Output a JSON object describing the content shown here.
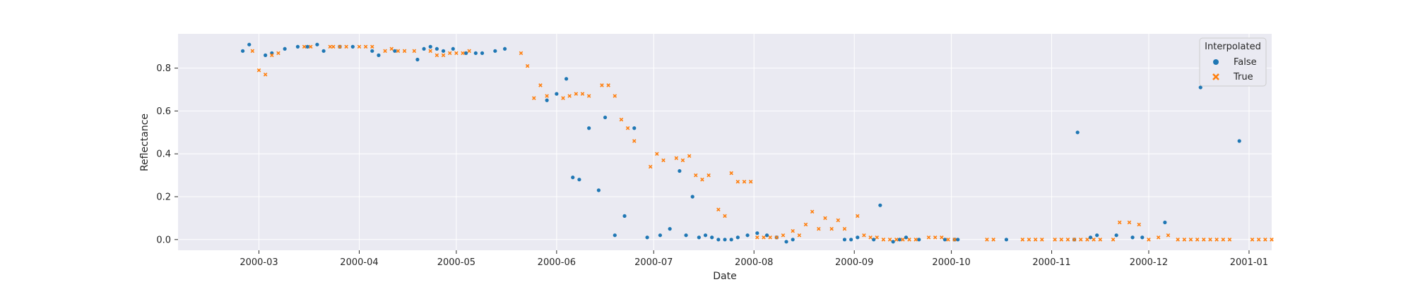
{
  "chart_data": {
    "type": "scatter",
    "title": "",
    "xlabel": "Date",
    "ylabel": "Reflectance",
    "x_is_date": true,
    "xlim": [
      "2000-02-05",
      "2001-01-08"
    ],
    "ylim": [
      -0.05,
      0.96
    ],
    "xticks": [
      "2000-03-01",
      "2000-04-01",
      "2000-05-01",
      "2000-06-01",
      "2000-07-01",
      "2000-08-01",
      "2000-09-01",
      "2000-10-01",
      "2000-11-01",
      "2000-12-01",
      "2001-01-01"
    ],
    "xtick_labels": [
      "2000-03",
      "2000-04",
      "2000-05",
      "2000-06",
      "2000-07",
      "2000-08",
      "2000-09",
      "2000-10",
      "2000-11",
      "2000-12",
      "2001-01"
    ],
    "yticks": [
      0.0,
      0.2,
      0.4,
      0.6,
      0.8
    ],
    "ytick_labels": [
      "0.0",
      "0.2",
      "0.4",
      "0.6",
      "0.8"
    ],
    "grid": true,
    "legend": {
      "title": "Interpolated",
      "position": "top-right",
      "entries": [
        "False",
        "True"
      ]
    },
    "colors": {
      "False": "#1f77b4",
      "True": "#ff7f0e",
      "plot_bg": "#eaeaf2",
      "grid": "#ffffff"
    },
    "series": [
      {
        "name": "False",
        "marker": "circle",
        "points": [
          [
            "2000-02-25",
            0.88
          ],
          [
            "2000-02-27",
            0.91
          ],
          [
            "2000-03-03",
            0.86
          ],
          [
            "2000-03-05",
            0.87
          ],
          [
            "2000-03-09",
            0.89
          ],
          [
            "2000-03-13",
            0.9
          ],
          [
            "2000-03-16",
            0.9
          ],
          [
            "2000-03-19",
            0.91
          ],
          [
            "2000-03-21",
            0.88
          ],
          [
            "2000-03-26",
            0.9
          ],
          [
            "2000-03-30",
            0.9
          ],
          [
            "2000-04-05",
            0.88
          ],
          [
            "2000-04-07",
            0.86
          ],
          [
            "2000-04-12",
            0.88
          ],
          [
            "2000-04-19",
            0.84
          ],
          [
            "2000-04-21",
            0.89
          ],
          [
            "2000-04-23",
            0.9
          ],
          [
            "2000-04-25",
            0.89
          ],
          [
            "2000-04-27",
            0.88
          ],
          [
            "2000-04-30",
            0.89
          ],
          [
            "2000-05-04",
            0.87
          ],
          [
            "2000-05-07",
            0.87
          ],
          [
            "2000-05-09",
            0.87
          ],
          [
            "2000-05-13",
            0.88
          ],
          [
            "2000-05-16",
            0.89
          ],
          [
            "2000-05-29",
            0.65
          ],
          [
            "2000-06-01",
            0.68
          ],
          [
            "2000-06-04",
            0.75
          ],
          [
            "2000-06-06",
            0.29
          ],
          [
            "2000-06-08",
            0.28
          ],
          [
            "2000-06-11",
            0.52
          ],
          [
            "2000-06-14",
            0.23
          ],
          [
            "2000-06-16",
            0.57
          ],
          [
            "2000-06-19",
            0.02
          ],
          [
            "2000-06-22",
            0.11
          ],
          [
            "2000-06-25",
            0.52
          ],
          [
            "2000-06-29",
            0.01
          ],
          [
            "2000-07-03",
            0.02
          ],
          [
            "2000-07-06",
            0.05
          ],
          [
            "2000-07-09",
            0.32
          ],
          [
            "2000-07-11",
            0.02
          ],
          [
            "2000-07-13",
            0.2
          ],
          [
            "2000-07-15",
            0.01
          ],
          [
            "2000-07-17",
            0.02
          ],
          [
            "2000-07-19",
            0.01
          ],
          [
            "2000-07-21",
            0.0
          ],
          [
            "2000-07-23",
            0.0
          ],
          [
            "2000-07-25",
            0.0
          ],
          [
            "2000-07-27",
            0.01
          ],
          [
            "2000-07-30",
            0.02
          ],
          [
            "2000-08-02",
            0.03
          ],
          [
            "2000-08-05",
            0.02
          ],
          [
            "2000-08-08",
            0.01
          ],
          [
            "2000-08-11",
            -0.01
          ],
          [
            "2000-08-13",
            0.0
          ],
          [
            "2000-08-29",
            0.0
          ],
          [
            "2000-08-31",
            0.0
          ],
          [
            "2000-09-02",
            0.01
          ],
          [
            "2000-09-07",
            0.0
          ],
          [
            "2000-09-09",
            0.16
          ],
          [
            "2000-09-13",
            -0.01
          ],
          [
            "2000-09-15",
            0.0
          ],
          [
            "2000-09-17",
            0.01
          ],
          [
            "2000-09-21",
            0.0
          ],
          [
            "2000-09-29",
            0.0
          ],
          [
            "2000-10-02",
            0.0
          ],
          [
            "2000-10-03",
            0.0
          ],
          [
            "2000-10-18",
            0.0
          ],
          [
            "2000-11-08",
            0.0
          ],
          [
            "2000-11-09",
            0.5
          ],
          [
            "2000-11-13",
            0.01
          ],
          [
            "2000-11-15",
            0.02
          ],
          [
            "2000-11-21",
            0.02
          ],
          [
            "2000-11-26",
            0.01
          ],
          [
            "2000-11-29",
            0.01
          ],
          [
            "2000-12-06",
            0.08
          ],
          [
            "2000-12-17",
            0.71
          ],
          [
            "2000-12-29",
            0.46
          ]
        ]
      },
      {
        "name": "True",
        "marker": "x",
        "points": [
          [
            "2000-02-28",
            0.88
          ],
          [
            "2000-03-01",
            0.79
          ],
          [
            "2000-03-03",
            0.77
          ],
          [
            "2000-03-05",
            0.86
          ],
          [
            "2000-03-07",
            0.87
          ],
          [
            "2000-03-15",
            0.9
          ],
          [
            "2000-03-17",
            0.9
          ],
          [
            "2000-03-23",
            0.9
          ],
          [
            "2000-03-24",
            0.9
          ],
          [
            "2000-03-26",
            0.9
          ],
          [
            "2000-03-28",
            0.9
          ],
          [
            "2000-04-01",
            0.9
          ],
          [
            "2000-04-03",
            0.9
          ],
          [
            "2000-04-05",
            0.9
          ],
          [
            "2000-04-09",
            0.88
          ],
          [
            "2000-04-11",
            0.89
          ],
          [
            "2000-04-13",
            0.88
          ],
          [
            "2000-04-15",
            0.88
          ],
          [
            "2000-04-18",
            0.88
          ],
          [
            "2000-04-23",
            0.88
          ],
          [
            "2000-04-25",
            0.86
          ],
          [
            "2000-04-27",
            0.86
          ],
          [
            "2000-04-29",
            0.87
          ],
          [
            "2000-05-01",
            0.87
          ],
          [
            "2000-05-03",
            0.87
          ],
          [
            "2000-05-05",
            0.88
          ],
          [
            "2000-05-21",
            0.87
          ],
          [
            "2000-05-23",
            0.81
          ],
          [
            "2000-05-25",
            0.66
          ],
          [
            "2000-05-27",
            0.72
          ],
          [
            "2000-05-29",
            0.67
          ],
          [
            "2000-06-03",
            0.66
          ],
          [
            "2000-06-05",
            0.67
          ],
          [
            "2000-06-07",
            0.68
          ],
          [
            "2000-06-09",
            0.68
          ],
          [
            "2000-06-11",
            0.67
          ],
          [
            "2000-06-15",
            0.72
          ],
          [
            "2000-06-17",
            0.72
          ],
          [
            "2000-06-19",
            0.67
          ],
          [
            "2000-06-21",
            0.56
          ],
          [
            "2000-06-23",
            0.52
          ],
          [
            "2000-06-25",
            0.46
          ],
          [
            "2000-06-30",
            0.34
          ],
          [
            "2000-07-02",
            0.4
          ],
          [
            "2000-07-04",
            0.37
          ],
          [
            "2000-07-08",
            0.38
          ],
          [
            "2000-07-10",
            0.37
          ],
          [
            "2000-07-12",
            0.39
          ],
          [
            "2000-07-14",
            0.3
          ],
          [
            "2000-07-16",
            0.28
          ],
          [
            "2000-07-18",
            0.3
          ],
          [
            "2000-07-21",
            0.14
          ],
          [
            "2000-07-23",
            0.11
          ],
          [
            "2000-07-25",
            0.31
          ],
          [
            "2000-07-27",
            0.27
          ],
          [
            "2000-07-29",
            0.27
          ],
          [
            "2000-07-31",
            0.27
          ],
          [
            "2000-08-02",
            0.01
          ],
          [
            "2000-08-04",
            0.01
          ],
          [
            "2000-08-06",
            0.01
          ],
          [
            "2000-08-08",
            0.01
          ],
          [
            "2000-08-10",
            0.02
          ],
          [
            "2000-08-13",
            0.04
          ],
          [
            "2000-08-15",
            0.02
          ],
          [
            "2000-08-17",
            0.07
          ],
          [
            "2000-08-19",
            0.13
          ],
          [
            "2000-08-21",
            0.05
          ],
          [
            "2000-08-23",
            0.1
          ],
          [
            "2000-08-25",
            0.05
          ],
          [
            "2000-08-27",
            0.09
          ],
          [
            "2000-08-29",
            0.05
          ],
          [
            "2000-09-02",
            0.11
          ],
          [
            "2000-09-04",
            0.02
          ],
          [
            "2000-09-06",
            0.01
          ],
          [
            "2000-09-08",
            0.01
          ],
          [
            "2000-09-10",
            0.0
          ],
          [
            "2000-09-12",
            0.0
          ],
          [
            "2000-09-14",
            0.0
          ],
          [
            "2000-09-16",
            0.0
          ],
          [
            "2000-09-18",
            0.0
          ],
          [
            "2000-09-20",
            0.0
          ],
          [
            "2000-09-24",
            0.01
          ],
          [
            "2000-09-26",
            0.01
          ],
          [
            "2000-09-28",
            0.01
          ],
          [
            "2000-09-30",
            0.0
          ],
          [
            "2000-10-02",
            0.0
          ],
          [
            "2000-10-12",
            0.0
          ],
          [
            "2000-10-14",
            0.0
          ],
          [
            "2000-10-23",
            0.0
          ],
          [
            "2000-10-25",
            0.0
          ],
          [
            "2000-10-27",
            0.0
          ],
          [
            "2000-10-29",
            0.0
          ],
          [
            "2000-11-02",
            0.0
          ],
          [
            "2000-11-04",
            0.0
          ],
          [
            "2000-11-06",
            0.0
          ],
          [
            "2000-11-08",
            0.0
          ],
          [
            "2000-11-10",
            0.0
          ],
          [
            "2000-11-12",
            0.0
          ],
          [
            "2000-11-14",
            0.0
          ],
          [
            "2000-11-16",
            0.0
          ],
          [
            "2000-11-20",
            0.0
          ],
          [
            "2000-11-22",
            0.08
          ],
          [
            "2000-11-25",
            0.08
          ],
          [
            "2000-11-28",
            0.07
          ],
          [
            "2000-12-01",
            0.0
          ],
          [
            "2000-12-04",
            0.01
          ],
          [
            "2000-12-07",
            0.02
          ],
          [
            "2000-12-10",
            0.0
          ],
          [
            "2000-12-12",
            0.0
          ],
          [
            "2000-12-14",
            0.0
          ],
          [
            "2000-12-16",
            0.0
          ],
          [
            "2000-12-18",
            0.0
          ],
          [
            "2000-12-20",
            0.0
          ],
          [
            "2000-12-22",
            0.0
          ],
          [
            "2000-12-24",
            0.0
          ],
          [
            "2000-12-26",
            0.0
          ],
          [
            "2001-01-02",
            0.0
          ],
          [
            "2001-01-04",
            0.0
          ],
          [
            "2001-01-06",
            0.0
          ],
          [
            "2001-01-08",
            0.0
          ]
        ]
      }
    ]
  }
}
